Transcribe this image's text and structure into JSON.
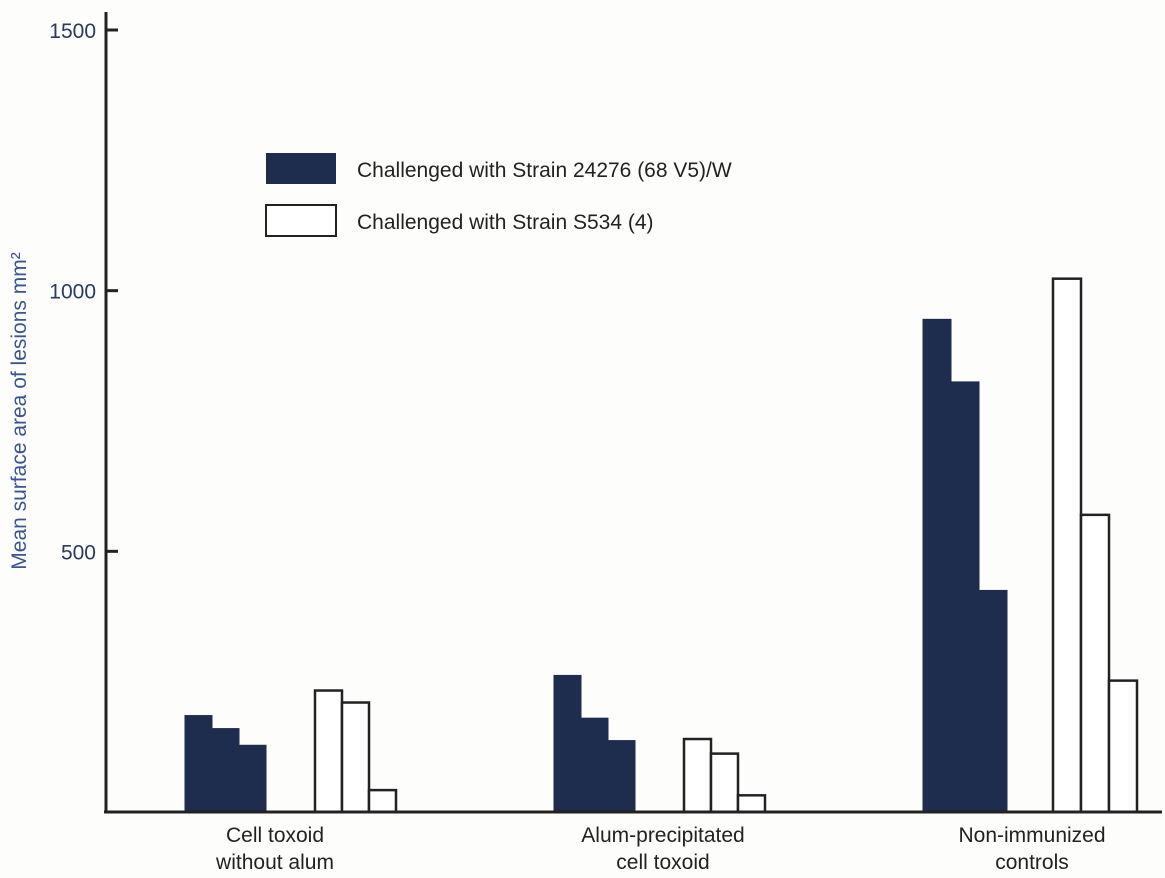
{
  "chart_data": {
    "type": "bar",
    "title": "",
    "xlabel": "",
    "ylabel": "Mean surface area of lesions mm²",
    "ylim": [
      0,
      1500
    ],
    "yticks": [
      500,
      1000,
      1500
    ],
    "grid": false,
    "legend_placement": "top-left",
    "categories": [
      [
        "Cell toxoid",
        "without alum"
      ],
      [
        "Alum-precipitated",
        "cell toxoid"
      ],
      [
        "Non-immunized",
        "controls"
      ]
    ],
    "series": [
      {
        "name": "Challenged with Strain 24276 (68 V5)/W",
        "fill": "filled",
        "values": [
          [
            185,
            160,
            128
          ],
          [
            262,
            180,
            137
          ],
          [
            945,
            825,
            425
          ]
        ]
      },
      {
        "name": "Challenged with Strain S534 (4)",
        "fill": "open",
        "values": [
          [
            233,
            210,
            42
          ],
          [
            140,
            112,
            32
          ],
          [
            1023,
            570,
            252
          ]
        ]
      }
    ],
    "colors": {
      "filled": "#1e2c4e",
      "open": "#ffffff",
      "axis": "#222222",
      "ylabel": "#3a5590"
    }
  }
}
